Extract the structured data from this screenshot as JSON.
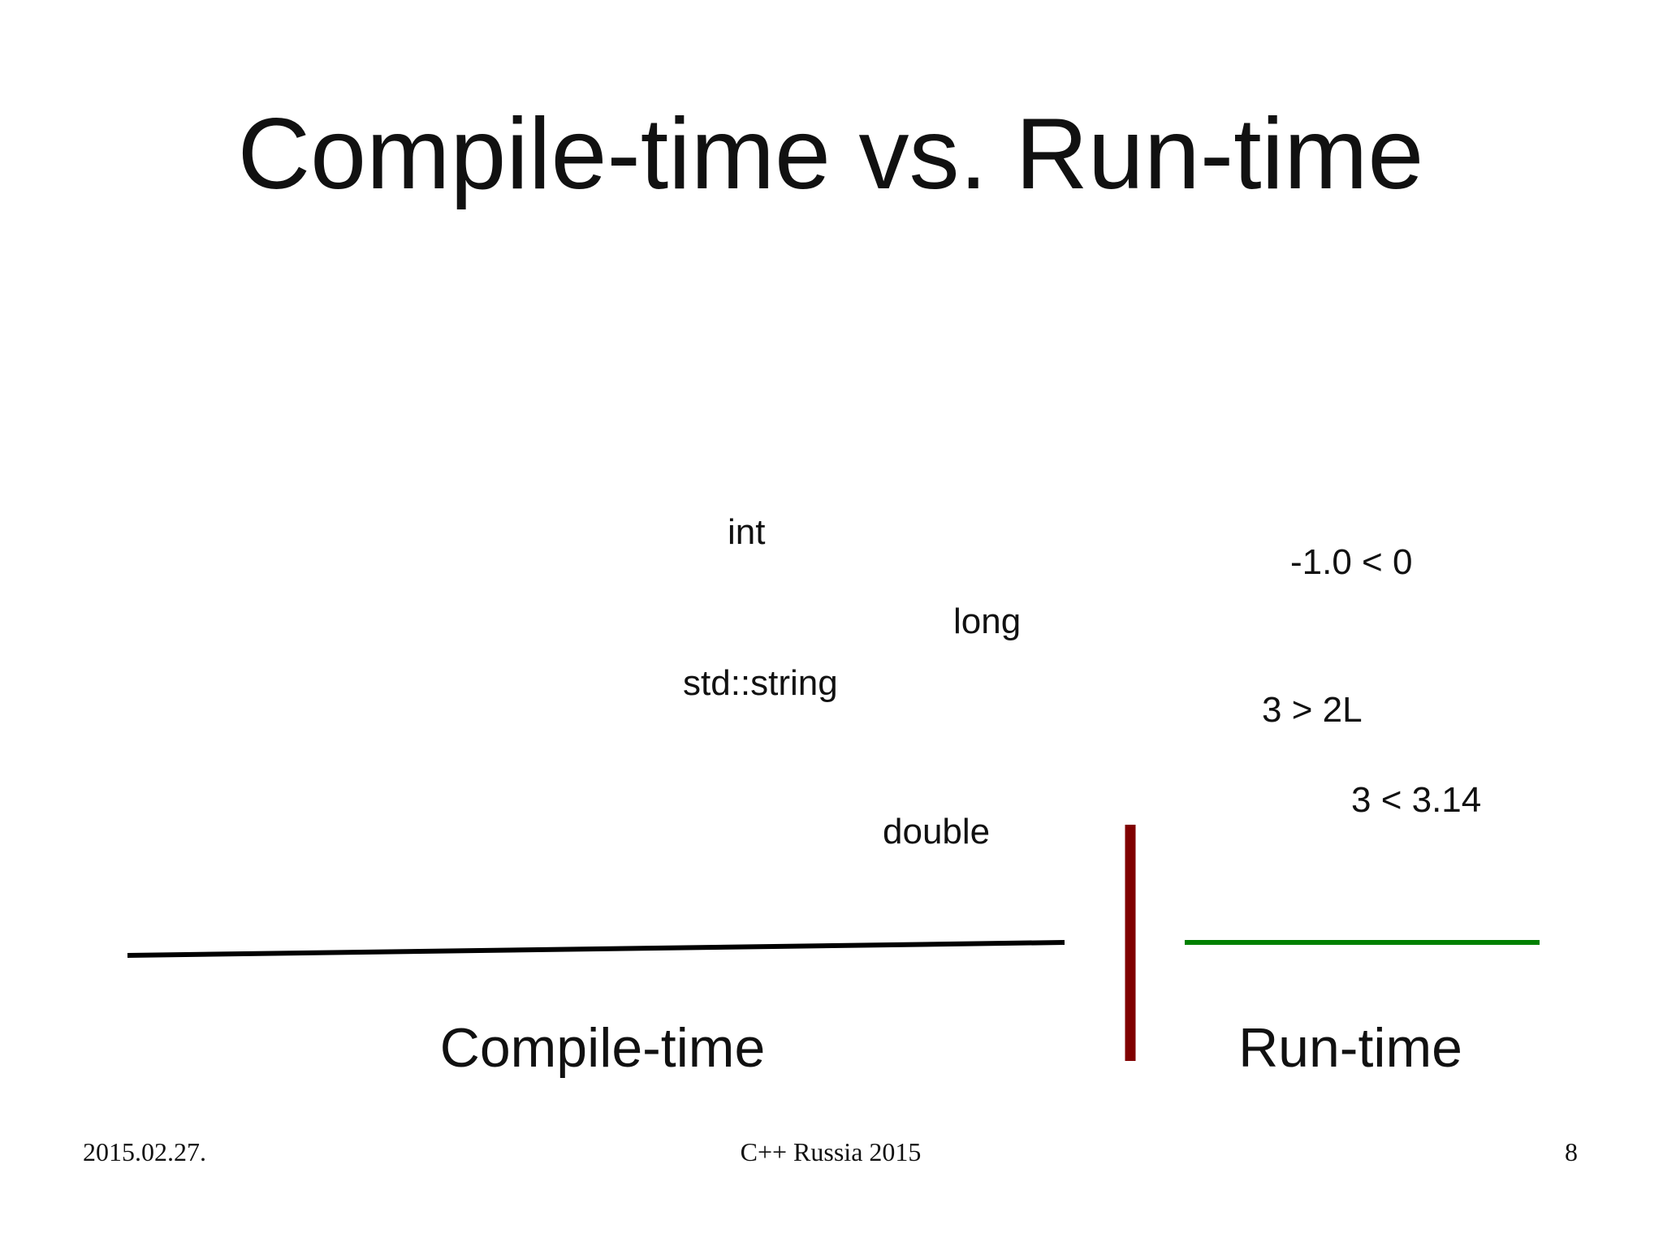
{
  "slide": {
    "title": "Compile-time vs. Run-time",
    "compile_items": [
      "int",
      "long",
      "std::string",
      "double"
    ],
    "runtime_items": [
      "-1.0 < 0",
      "3 > 2L",
      "3 < 3.14"
    ],
    "compile_label": "Compile-time",
    "runtime_label": "Run-time"
  },
  "footer": {
    "date": "2015.02.27.",
    "event": "C++ Russia 2015",
    "page": "8"
  }
}
